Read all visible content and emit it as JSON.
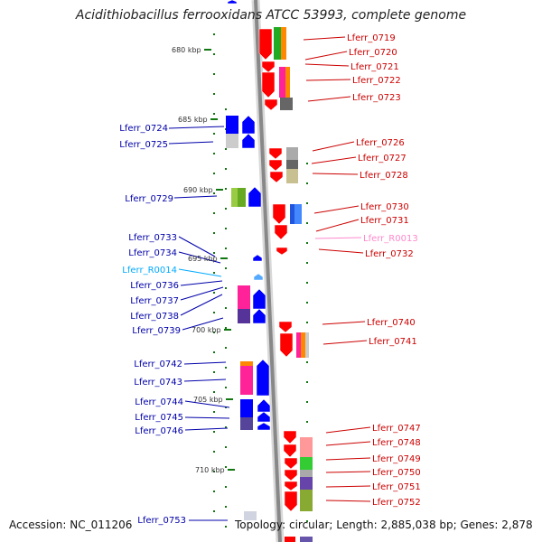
{
  "title": "Acidithiobacillus ferrooxidans ATCC 53993, complete genome",
  "footer": {
    "accession": "Accession: NC_011206",
    "summary": "Topology: circular; Length: 2,885,038 bp; Genes: 2,878"
  },
  "colors": {
    "forward_strand": "#0000ff",
    "reverse_strand": "#ff0000",
    "rna_label": "#00aaff",
    "pseudo_label": "#ff88cc",
    "scale_tick": "#117711"
  },
  "scale_labels": [
    "680 kbp",
    "685 kbp",
    "690 kbp",
    "695 kbp",
    "700 kbp",
    "705 kbp",
    "710 kbp"
  ],
  "left_genes": [
    "Lferr_0724",
    "Lferr_0725",
    "Lferr_0729",
    "Lferr_0733",
    "Lferr_0734",
    "Lferr_R0014",
    "Lferr_0736",
    "Lferr_0737",
    "Lferr_0738",
    "Lferr_0739",
    "Lferr_0742",
    "Lferr_0743",
    "Lferr_0744",
    "Lferr_0745",
    "Lferr_0746",
    "Lferr_0753"
  ],
  "right_genes": [
    "Lferr_0719",
    "Lferr_0720",
    "Lferr_0721",
    "Lferr_0722",
    "Lferr_0723",
    "Lferr_0726",
    "Lferr_0727",
    "Lferr_0728",
    "Lferr_0730",
    "Lferr_0731",
    "Lferr_R0013",
    "Lferr_0732",
    "Lferr_0740",
    "Lferr_0741",
    "Lferr_0747",
    "Lferr_0748",
    "Lferr_0749",
    "Lferr_0750",
    "Lferr_0751",
    "Lferr_0752"
  ]
}
